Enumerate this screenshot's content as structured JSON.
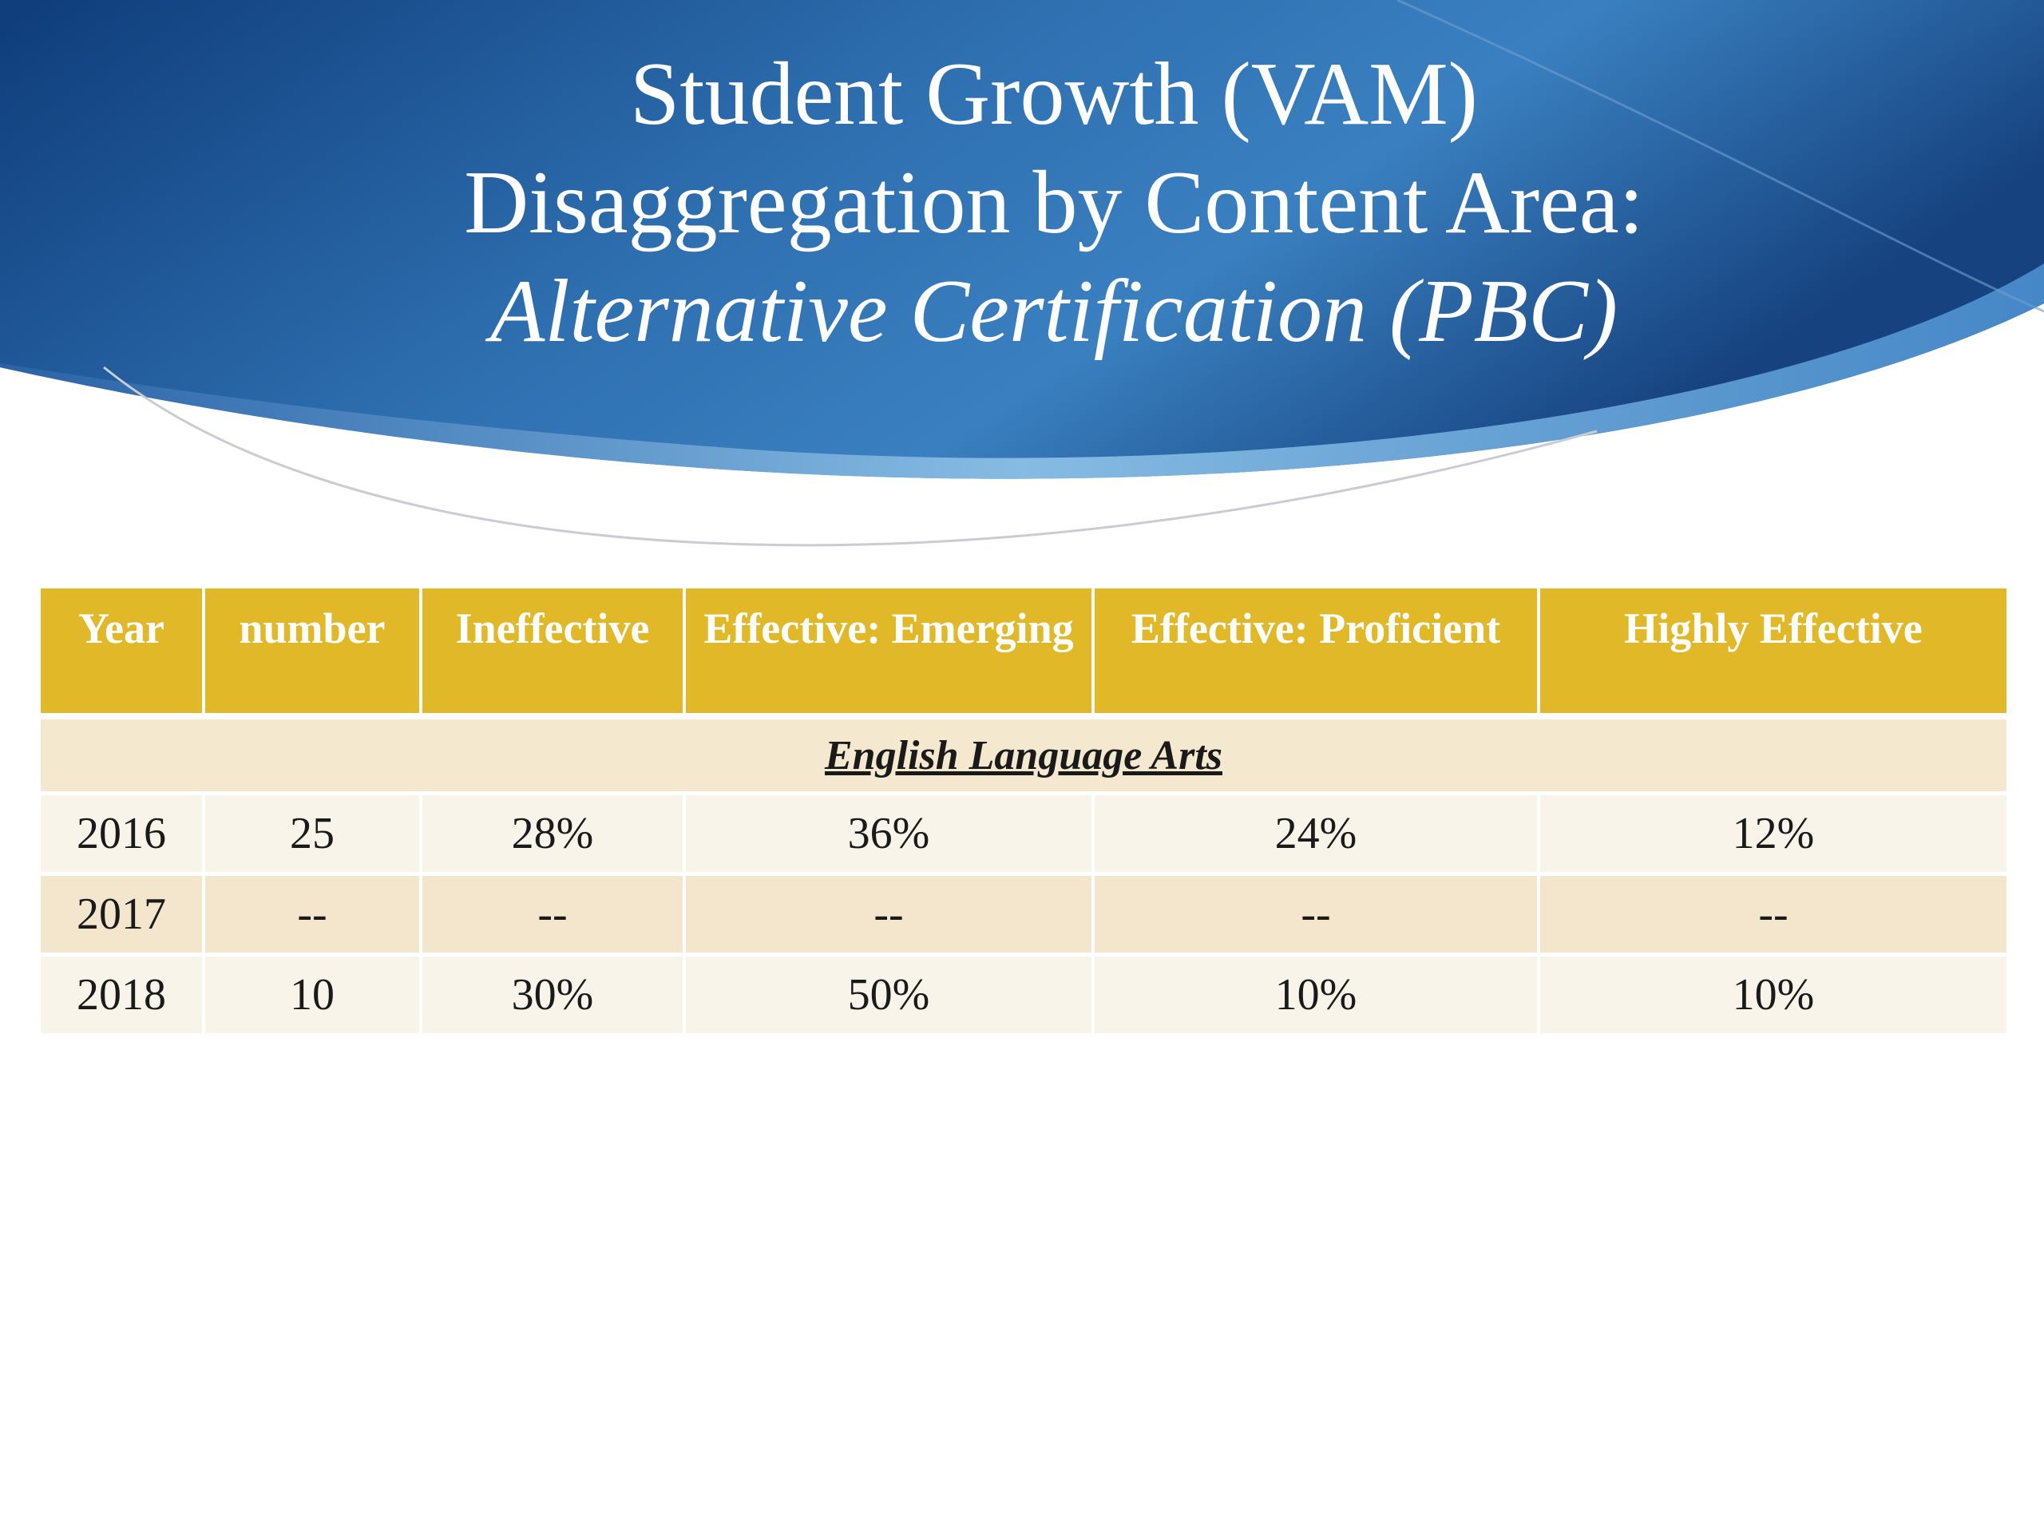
{
  "slide": {
    "title_lines": [
      "Student Growth (VAM)",
      "Disaggregation by Content Area:",
      "Alternative Certification (PBC)"
    ]
  },
  "table": {
    "headers": [
      "Year",
      "number",
      "Ineffective",
      "Effective: Emerging",
      "Effective: Proficient",
      "Highly Effective"
    ],
    "section_label": "English Language Arts",
    "rows": [
      [
        "2016",
        "25",
        "28%",
        "36%",
        "24%",
        "12%"
      ],
      [
        "2017",
        "--",
        "--",
        "--",
        "--",
        "--"
      ],
      [
        "2018",
        "10",
        "30%",
        "50%",
        "10%",
        "10%"
      ]
    ]
  },
  "colors": {
    "header_bg": "#e0b828",
    "banner_dark": "#0f3c7a",
    "banner_light": "#8fc3e8"
  }
}
